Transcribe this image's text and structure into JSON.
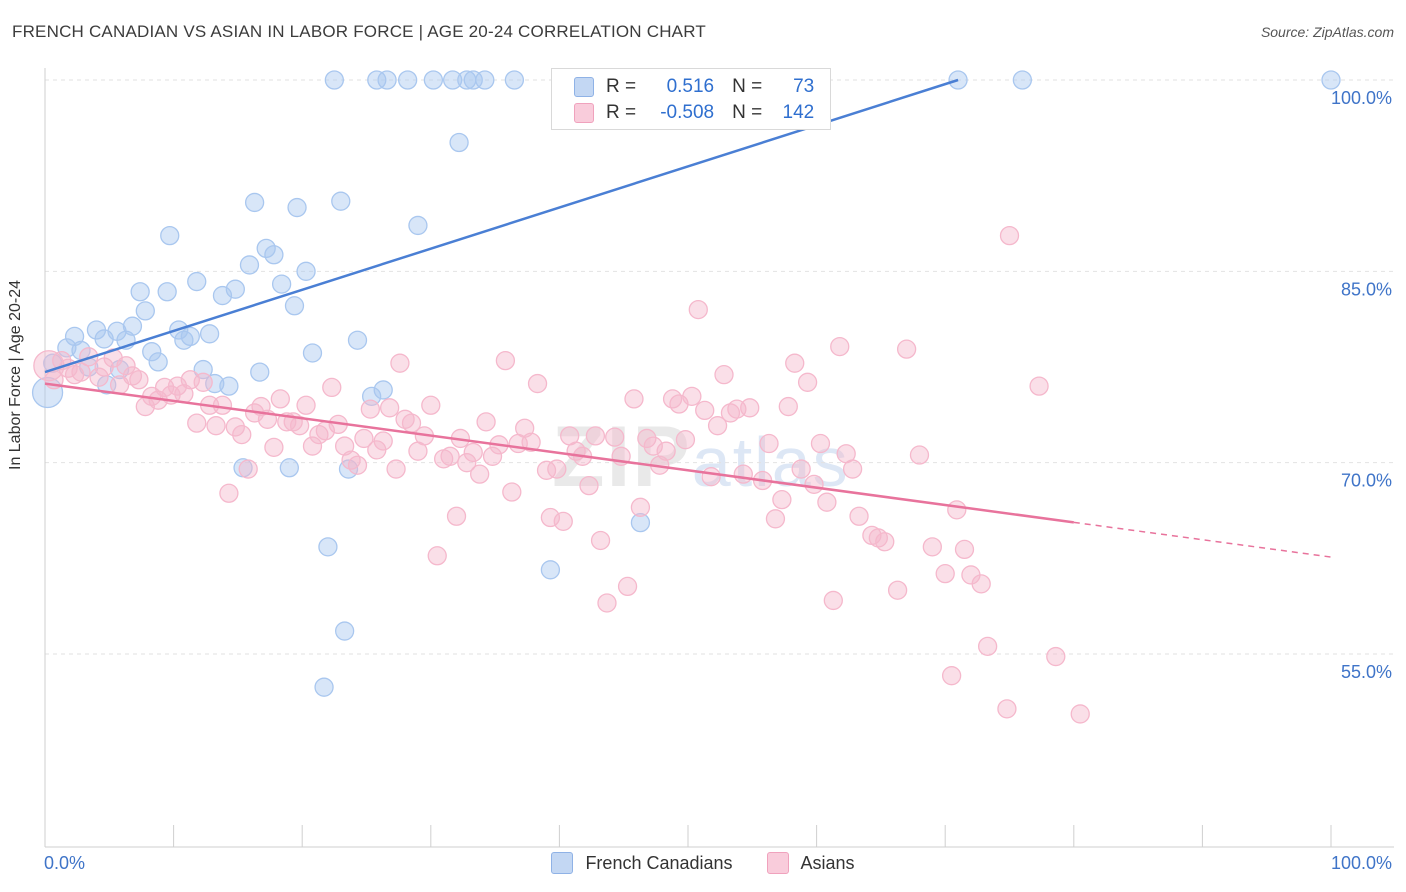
{
  "title": "FRENCH CANADIAN VS ASIAN IN LABOR FORCE | AGE 20-24 CORRELATION CHART",
  "source": "Source: ZipAtlas.com",
  "watermark": {
    "zip": "ZIP",
    "atlas": "atlas"
  },
  "legend": {
    "rows": [
      {
        "r_label": "R =",
        "r_value": "0.516",
        "n_label": "N =",
        "n_value": "73",
        "color": "#a9c7ef"
      },
      {
        "r_label": "R =",
        "r_value": "-0.508",
        "n_label": "N =",
        "n_value": "142",
        "color": "#f5b8cc"
      }
    ]
  },
  "bottom_legend": [
    {
      "label": "French Canadians",
      "color": "#a9c7ef"
    },
    {
      "label": "Asians",
      "color": "#f5b8cc"
    }
  ],
  "chart_data": {
    "type": "scatter",
    "ylabel": "In Labor Force | Age 20-24",
    "xlim": [
      0,
      100
    ],
    "ylim": [
      40,
      102
    ],
    "x_ticks": [
      {
        "value": 0,
        "label": "0.0%"
      },
      {
        "value": 100,
        "label": "100.0%"
      }
    ],
    "y_ticks": [
      {
        "value": 55,
        "label": "55.0%"
      },
      {
        "value": 70,
        "label": "70.0%"
      },
      {
        "value": 85,
        "label": "85.0%"
      },
      {
        "value": 100,
        "label": "100.0%"
      }
    ],
    "grid": true,
    "series": [
      {
        "name": "French Canadians",
        "color": "#4a7fd4",
        "fill": "#a9c7ef",
        "trend": {
          "x": [
            0,
            71
          ],
          "y": [
            77.1,
            100.0
          ],
          "solid_to": 71
        },
        "points": [
          [
            0.2,
            75.5
          ],
          [
            0.6,
            77.8
          ],
          [
            1.7,
            79.0
          ],
          [
            2.3,
            79.9
          ],
          [
            2.8,
            78.8
          ],
          [
            3.4,
            77.5
          ],
          [
            4,
            80.4
          ],
          [
            4.6,
            79.7
          ],
          [
            4.8,
            76.1
          ],
          [
            5.6,
            80.3
          ],
          [
            5.8,
            77.3
          ],
          [
            6.3,
            79.6
          ],
          [
            6.8,
            80.7
          ],
          [
            7.4,
            83.4
          ],
          [
            7.8,
            81.9
          ],
          [
            8.3,
            78.7
          ],
          [
            8.8,
            77.9
          ],
          [
            9.5,
            83.4
          ],
          [
            9.7,
            87.8
          ],
          [
            10.4,
            80.4
          ],
          [
            10.8,
            79.6
          ],
          [
            11.3,
            79.9
          ],
          [
            11.8,
            84.2
          ],
          [
            12.3,
            77.3
          ],
          [
            12.8,
            80.1
          ],
          [
            13.2,
            76.2
          ],
          [
            13.8,
            83.1
          ],
          [
            14.3,
            76.0
          ],
          [
            14.8,
            83.6
          ],
          [
            15.4,
            69.6
          ],
          [
            15.9,
            85.5
          ],
          [
            16.3,
            90.4
          ],
          [
            16.7,
            77.1
          ],
          [
            17.2,
            86.8
          ],
          [
            17.8,
            86.3
          ],
          [
            18.4,
            84.0
          ],
          [
            19.0,
            69.6
          ],
          [
            19.4,
            82.3
          ],
          [
            19.6,
            90.0
          ],
          [
            20.3,
            85.0
          ],
          [
            20.8,
            78.6
          ],
          [
            21.7,
            52.4
          ],
          [
            22.0,
            63.4
          ],
          [
            22.5,
            100.0
          ],
          [
            23.0,
            90.5
          ],
          [
            23.3,
            56.8
          ],
          [
            23.6,
            69.5
          ],
          [
            24.3,
            79.6
          ],
          [
            25.4,
            75.2
          ],
          [
            25.8,
            100.0
          ],
          [
            26.3,
            75.7
          ],
          [
            26.6,
            100.0
          ],
          [
            28.2,
            100.0
          ],
          [
            29.0,
            88.6
          ],
          [
            30.2,
            100.0
          ],
          [
            31.7,
            100.0
          ],
          [
            32.2,
            95.1
          ],
          [
            32.8,
            100.0
          ],
          [
            33.3,
            100.0
          ],
          [
            34.2,
            100.0
          ],
          [
            36.5,
            100.0
          ],
          [
            39.3,
            61.6
          ],
          [
            40.7,
            100.0
          ],
          [
            46.3,
            65.3
          ],
          [
            46.6,
            100.0
          ],
          [
            55.0,
            100.0
          ],
          [
            71.0,
            100.0
          ],
          [
            76.0,
            100.0
          ],
          [
            100.0,
            100.0
          ]
        ]
      },
      {
        "name": "Asians",
        "color": "#e8739c",
        "fill": "#f5b8cc",
        "trend": {
          "x": [
            0,
            100
          ],
          "y": [
            76.2,
            62.6
          ],
          "solid_to": 80
        },
        "points": [
          [
            0.3,
            77.6
          ],
          [
            0.7,
            76.5
          ],
          [
            1.3,
            78.0
          ],
          [
            1.8,
            77.4
          ],
          [
            2.3,
            76.9
          ],
          [
            2.8,
            77.1
          ],
          [
            3.4,
            78.3
          ],
          [
            4.2,
            76.7
          ],
          [
            4.6,
            77.5
          ],
          [
            5.3,
            78.2
          ],
          [
            5.8,
            76.1
          ],
          [
            6.3,
            77.6
          ],
          [
            6.8,
            76.8
          ],
          [
            7.3,
            76.5
          ],
          [
            7.8,
            74.4
          ],
          [
            8.3,
            75.2
          ],
          [
            8.8,
            74.9
          ],
          [
            9.3,
            75.9
          ],
          [
            9.8,
            75.3
          ],
          [
            10.3,
            76.0
          ],
          [
            10.8,
            75.4
          ],
          [
            11.3,
            76.5
          ],
          [
            11.8,
            73.1
          ],
          [
            12.3,
            76.3
          ],
          [
            12.8,
            74.5
          ],
          [
            13.3,
            72.9
          ],
          [
            13.8,
            74.5
          ],
          [
            14.3,
            67.6
          ],
          [
            14.8,
            72.8
          ],
          [
            15.3,
            72.2
          ],
          [
            15.8,
            69.5
          ],
          [
            16.3,
            73.9
          ],
          [
            16.8,
            74.4
          ],
          [
            17.3,
            73.4
          ],
          [
            17.8,
            71.2
          ],
          [
            18.3,
            75.0
          ],
          [
            18.8,
            73.2
          ],
          [
            19.3,
            73.2
          ],
          [
            19.8,
            72.9
          ],
          [
            20.3,
            74.5
          ],
          [
            20.8,
            71.3
          ],
          [
            21.3,
            72.2
          ],
          [
            21.8,
            72.5
          ],
          [
            22.3,
            75.9
          ],
          [
            22.8,
            73.0
          ],
          [
            23.3,
            71.3
          ],
          [
            23.8,
            70.2
          ],
          [
            24.3,
            69.8
          ],
          [
            24.8,
            71.9
          ],
          [
            25.3,
            74.2
          ],
          [
            25.8,
            71.0
          ],
          [
            26.3,
            71.7
          ],
          [
            26.8,
            74.3
          ],
          [
            27.3,
            69.5
          ],
          [
            27.6,
            77.8
          ],
          [
            28.0,
            73.4
          ],
          [
            28.5,
            73.1
          ],
          [
            29.0,
            70.9
          ],
          [
            29.5,
            72.1
          ],
          [
            30.0,
            74.5
          ],
          [
            30.5,
            62.7
          ],
          [
            31.0,
            70.3
          ],
          [
            31.5,
            70.5
          ],
          [
            32.0,
            65.8
          ],
          [
            32.3,
            71.9
          ],
          [
            32.8,
            70.0
          ],
          [
            33.3,
            70.8
          ],
          [
            33.8,
            69.1
          ],
          [
            34.3,
            73.2
          ],
          [
            34.8,
            70.5
          ],
          [
            35.3,
            71.4
          ],
          [
            35.8,
            78.0
          ],
          [
            36.3,
            67.7
          ],
          [
            36.8,
            71.5
          ],
          [
            37.3,
            72.7
          ],
          [
            37.8,
            71.6
          ],
          [
            38.3,
            76.2
          ],
          [
            39.0,
            69.4
          ],
          [
            39.3,
            65.7
          ],
          [
            39.8,
            69.5
          ],
          [
            40.3,
            65.4
          ],
          [
            40.8,
            72.1
          ],
          [
            41.3,
            70.9
          ],
          [
            41.8,
            70.5
          ],
          [
            42.3,
            68.2
          ],
          [
            42.8,
            72.1
          ],
          [
            43.2,
            63.9
          ],
          [
            43.7,
            59.0
          ],
          [
            44.3,
            72.0
          ],
          [
            44.8,
            70.5
          ],
          [
            45.3,
            60.3
          ],
          [
            45.8,
            75.0
          ],
          [
            46.3,
            66.5
          ],
          [
            46.8,
            71.9
          ],
          [
            47.3,
            71.3
          ],
          [
            47.8,
            69.8
          ],
          [
            48.3,
            70.9
          ],
          [
            48.8,
            75.0
          ],
          [
            49.3,
            74.6
          ],
          [
            49.8,
            71.8
          ],
          [
            50.3,
            75.2
          ],
          [
            50.8,
            82.0
          ],
          [
            51.3,
            74.1
          ],
          [
            51.8,
            68.9
          ],
          [
            52.3,
            72.9
          ],
          [
            52.8,
            76.9
          ],
          [
            53.3,
            73.9
          ],
          [
            53.8,
            74.2
          ],
          [
            54.3,
            69.1
          ],
          [
            54.8,
            74.3
          ],
          [
            55.8,
            68.6
          ],
          [
            56.3,
            71.5
          ],
          [
            56.8,
            65.6
          ],
          [
            57.3,
            67.1
          ],
          [
            57.8,
            74.4
          ],
          [
            58.3,
            77.8
          ],
          [
            58.8,
            69.5
          ],
          [
            59.3,
            76.3
          ],
          [
            59.8,
            68.3
          ],
          [
            60.3,
            71.5
          ],
          [
            60.8,
            66.9
          ],
          [
            61.3,
            59.2
          ],
          [
            61.8,
            79.1
          ],
          [
            62.3,
            70.7
          ],
          [
            62.8,
            69.5
          ],
          [
            63.3,
            65.8
          ],
          [
            64.3,
            64.3
          ],
          [
            64.8,
            64.1
          ],
          [
            65.3,
            63.8
          ],
          [
            66.3,
            60.0
          ],
          [
            67.0,
            78.9
          ],
          [
            68.0,
            70.6
          ],
          [
            69.0,
            63.4
          ],
          [
            70.0,
            61.3
          ],
          [
            70.5,
            53.3
          ],
          [
            70.9,
            66.3
          ],
          [
            71.5,
            63.2
          ],
          [
            72.0,
            61.2
          ],
          [
            73.3,
            55.6
          ],
          [
            74.8,
            50.7
          ],
          [
            77.3,
            76.0
          ],
          [
            78.6,
            54.8
          ],
          [
            80.5,
            50.3
          ],
          [
            75.0,
            87.8
          ],
          [
            72.8,
            60.5
          ]
        ]
      }
    ]
  }
}
